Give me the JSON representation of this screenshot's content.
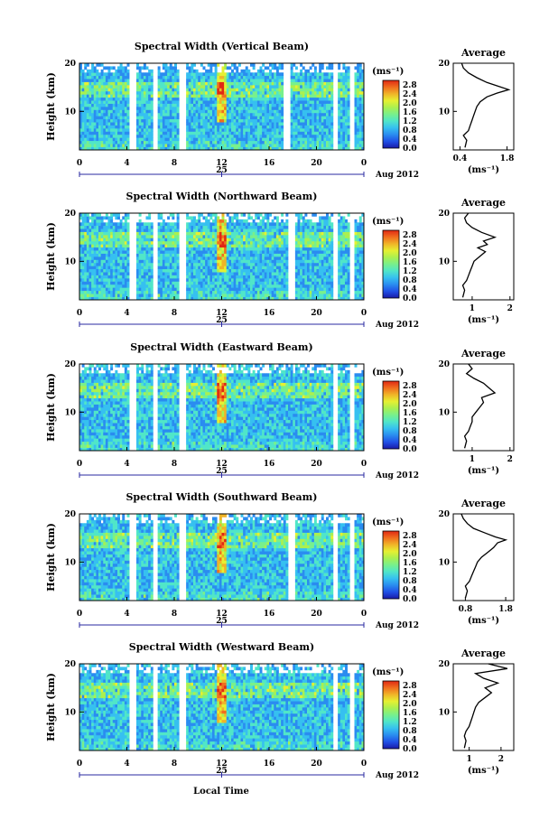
{
  "figure": {
    "xlabel": "Local Time",
    "colorbar_unit": "(ms⁻¹)",
    "colorbar_ticks": [
      "2.8",
      "2.4",
      "2.0",
      "1.6",
      "1.2",
      "0.8",
      "0.4",
      "0.0"
    ],
    "colorbar_range": [
      0.0,
      3.0
    ],
    "colormap": [
      "#1a1aa8",
      "#2050e6",
      "#2a8cf0",
      "#36c0f0",
      "#50e6c8",
      "#78f08c",
      "#aaf050",
      "#e6f032",
      "#f0b428",
      "#f06e1e",
      "#e02814"
    ],
    "average_title": "Average",
    "average_unit": "(ms⁻¹)",
    "date_label": "Aug 2012",
    "day_label": "25"
  },
  "chart_data": [
    {
      "type": "heatmap",
      "title": "Spectral Width (Vertical Beam)",
      "ylabel": "Height (km)",
      "x_ticks": [
        "0",
        "4",
        "8",
        "12",
        "16",
        "20",
        "0"
      ],
      "xlim": [
        0,
        24
      ],
      "y_ticks": [
        "20",
        "10"
      ],
      "ylim": [
        2,
        20
      ],
      "data_gaps_hours": [
        [
          4.3,
          4.8
        ],
        [
          6.2,
          6.6
        ],
        [
          8.5,
          8.9
        ],
        [
          17.3,
          17.8
        ],
        [
          21.4,
          21.8
        ],
        [
          22.8,
          23.2
        ]
      ],
      "average": {
        "title": "Average",
        "x_ticks": [
          "0.4",
          "1.8"
        ],
        "xlim": [
          0.2,
          2.0
        ],
        "y_ticks": [
          "20",
          "10"
        ],
        "height_km": [
          2.5,
          4,
          5,
          6,
          7,
          8,
          9,
          10,
          11,
          12,
          13,
          13.8,
          14.5,
          15.2,
          16,
          17,
          18,
          19,
          20
        ],
        "width_ms": [
          0.55,
          0.6,
          0.5,
          0.65,
          0.7,
          0.75,
          0.8,
          0.85,
          0.9,
          1.0,
          1.2,
          1.5,
          1.85,
          1.55,
          1.2,
          0.9,
          0.65,
          0.5,
          0.45
        ]
      }
    },
    {
      "type": "heatmap",
      "title": "Spectral Width (Northward Beam)",
      "ylabel": "Height (km)",
      "x_ticks": [
        "0",
        "4",
        "8",
        "12",
        "16",
        "20",
        "0"
      ],
      "xlim": [
        0,
        24
      ],
      "y_ticks": [
        "20",
        "10"
      ],
      "ylim": [
        2,
        20
      ],
      "data_gaps_hours": [
        [
          4.3,
          4.8
        ],
        [
          6.2,
          6.6
        ],
        [
          8.5,
          8.9
        ],
        [
          17.7,
          18.2
        ],
        [
          21.4,
          21.8
        ],
        [
          22.8,
          23.2
        ]
      ],
      "average": {
        "title": "Average",
        "x_ticks": [
          "1",
          "2"
        ],
        "xlim": [
          0.5,
          2.1
        ],
        "y_ticks": [
          "20",
          "10"
        ],
        "height_km": [
          2.5,
          4,
          5,
          6,
          7,
          8,
          9,
          10,
          11,
          12,
          12.8,
          13.5,
          14.2,
          15,
          16,
          17,
          18,
          19,
          20
        ],
        "width_ms": [
          0.75,
          0.8,
          0.75,
          0.85,
          0.9,
          0.95,
          1.0,
          1.05,
          1.2,
          1.35,
          1.15,
          1.4,
          1.3,
          1.6,
          1.25,
          1.0,
          0.85,
          0.8,
          0.9
        ]
      }
    },
    {
      "type": "heatmap",
      "title": "Spectral Width (Eastward Beam)",
      "ylabel": "Height (km)",
      "x_ticks": [
        "0",
        "4",
        "8",
        "12",
        "16",
        "20",
        "0"
      ],
      "xlim": [
        0,
        24
      ],
      "y_ticks": [
        "20",
        "10"
      ],
      "ylim": [
        2,
        20
      ],
      "data_gaps_hours": [
        [
          4.3,
          4.8
        ],
        [
          6.2,
          6.6
        ],
        [
          8.5,
          8.9
        ],
        [
          21.4,
          21.8
        ],
        [
          22.8,
          23.2
        ]
      ],
      "average": {
        "title": "Average",
        "x_ticks": [
          "1",
          "2"
        ],
        "xlim": [
          0.5,
          2.1
        ],
        "y_ticks": [
          "20",
          "10"
        ],
        "height_km": [
          2.5,
          4,
          5,
          6,
          7,
          8,
          9,
          10,
          11,
          12,
          13,
          14,
          15,
          16,
          17,
          18,
          19,
          20
        ],
        "width_ms": [
          0.8,
          0.85,
          0.8,
          0.9,
          0.95,
          1.0,
          1.0,
          1.1,
          1.2,
          1.3,
          1.25,
          1.6,
          1.45,
          1.3,
          1.05,
          0.85,
          1.0,
          0.9
        ]
      }
    },
    {
      "type": "heatmap",
      "title": "Spectral Width (Southward Beam)",
      "ylabel": "Height (km)",
      "x_ticks": [
        "0",
        "4",
        "8",
        "12",
        "16",
        "20",
        "0"
      ],
      "xlim": [
        0,
        24
      ],
      "y_ticks": [
        "20",
        "10"
      ],
      "ylim": [
        2,
        20
      ],
      "data_gaps_hours": [
        [
          4.3,
          4.8
        ],
        [
          6.2,
          6.6
        ],
        [
          8.5,
          8.9
        ],
        [
          17.7,
          18.2
        ],
        [
          21.4,
          21.8
        ],
        [
          22.8,
          23.2
        ]
      ],
      "average": {
        "title": "Average",
        "x_ticks": [
          "0.8",
          "1.8"
        ],
        "xlim": [
          0.5,
          2.0
        ],
        "y_ticks": [
          "20",
          "10"
        ],
        "height_km": [
          2.5,
          4,
          5,
          6,
          7,
          8,
          9,
          10,
          11,
          12,
          13,
          14,
          14.6,
          15.2,
          16,
          17,
          18,
          19,
          20
        ],
        "width_ms": [
          0.8,
          0.85,
          0.8,
          0.9,
          0.95,
          1.0,
          1.05,
          1.1,
          1.2,
          1.35,
          1.5,
          1.6,
          1.8,
          1.55,
          1.3,
          1.0,
          0.85,
          0.75,
          0.7
        ]
      }
    },
    {
      "type": "heatmap",
      "title": "Spectral Width (Westward Beam)",
      "ylabel": "Height (km)",
      "x_ticks": [
        "0",
        "4",
        "8",
        "12",
        "16",
        "20",
        "0"
      ],
      "xlim": [
        0,
        24
      ],
      "y_ticks": [
        "20",
        "10"
      ],
      "ylim": [
        2,
        20
      ],
      "data_gaps_hours": [
        [
          4.3,
          4.8
        ],
        [
          6.2,
          6.6
        ],
        [
          8.5,
          8.9
        ],
        [
          21.4,
          21.8
        ],
        [
          22.8,
          23.2
        ]
      ],
      "average": {
        "title": "Average",
        "x_ticks": [
          "1",
          "2"
        ],
        "xlim": [
          0.5,
          2.4
        ],
        "y_ticks": [
          "20",
          "10"
        ],
        "height_km": [
          2.5,
          4,
          5,
          6,
          7,
          8,
          9,
          10,
          11,
          12,
          13,
          14,
          15,
          16,
          17,
          18,
          19,
          20
        ],
        "width_ms": [
          0.85,
          0.9,
          0.85,
          0.9,
          1.0,
          1.05,
          1.1,
          1.15,
          1.2,
          1.3,
          1.5,
          1.7,
          1.5,
          1.9,
          1.45,
          1.2,
          2.2,
          1.6
        ]
      }
    }
  ]
}
